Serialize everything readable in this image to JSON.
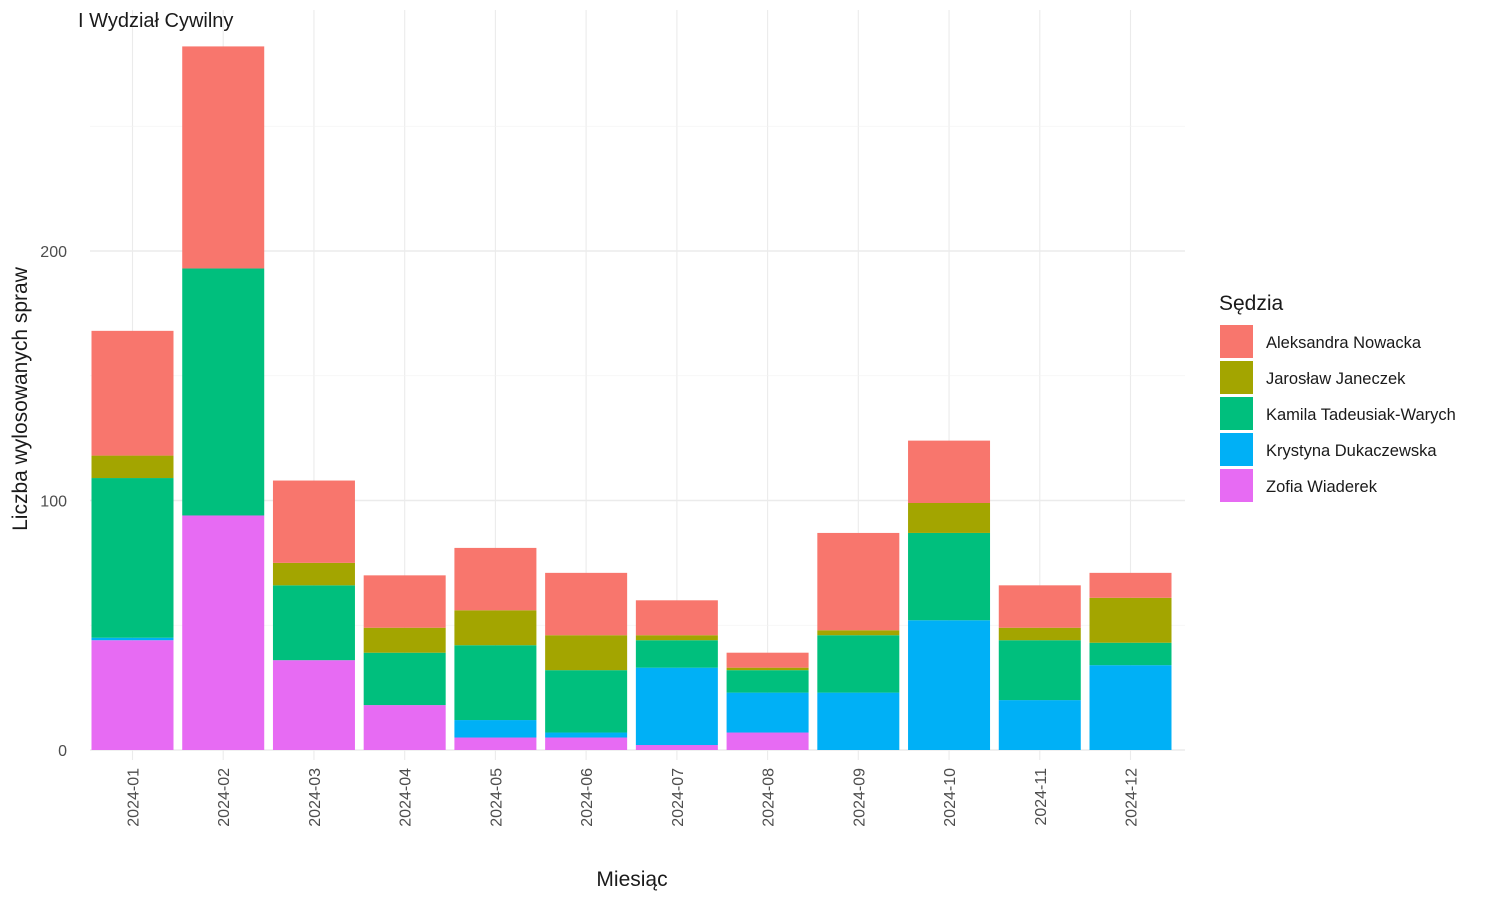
{
  "chart_data": {
    "type": "bar",
    "stacked": true,
    "title": "I Wydział Cywilny",
    "xlabel": "Miesiąc",
    "ylabel": "Liczba wylosowanych spraw",
    "ylim": [
      0,
      282
    ],
    "yticks": [
      0,
      100,
      200
    ],
    "grid": true,
    "legend_title": "Sędzia",
    "legend_position": "right",
    "categories": [
      "2024-01",
      "2024-02",
      "2024-03",
      "2024-04",
      "2024-05",
      "2024-06",
      "2024-07",
      "2024-08",
      "2024-09",
      "2024-10",
      "2024-11",
      "2024-12"
    ],
    "series": [
      {
        "name": "Zofia Wiaderek",
        "color": "#E76BF3",
        "values": [
          44,
          94,
          36,
          18,
          5,
          5,
          2,
          7,
          0,
          0,
          0,
          0
        ]
      },
      {
        "name": "Krystyna Dukaczewska",
        "color": "#00B0F6",
        "values": [
          1,
          0,
          0,
          0,
          7,
          2,
          31,
          16,
          23,
          52,
          20,
          34
        ]
      },
      {
        "name": "Kamila Tadeusiak-Warych",
        "color": "#00BF7D",
        "values": [
          64,
          99,
          30,
          21,
          30,
          25,
          11,
          9,
          23,
          35,
          24,
          9
        ]
      },
      {
        "name": "Jarosław Janeczek",
        "color": "#A3A500",
        "values": [
          9,
          0,
          9,
          10,
          14,
          14,
          2,
          1,
          2,
          12,
          5,
          18
        ]
      },
      {
        "name": "Aleksandra Nowacka",
        "color": "#F8766D",
        "values": [
          50,
          89,
          33,
          21,
          25,
          25,
          14,
          6,
          39,
          25,
          17,
          10
        ]
      }
    ],
    "legend_order": [
      "Aleksandra Nowacka",
      "Jarosław Janeczek",
      "Kamila Tadeusiak-Warych",
      "Krystyna Dukaczewska",
      "Zofia Wiaderek"
    ]
  }
}
